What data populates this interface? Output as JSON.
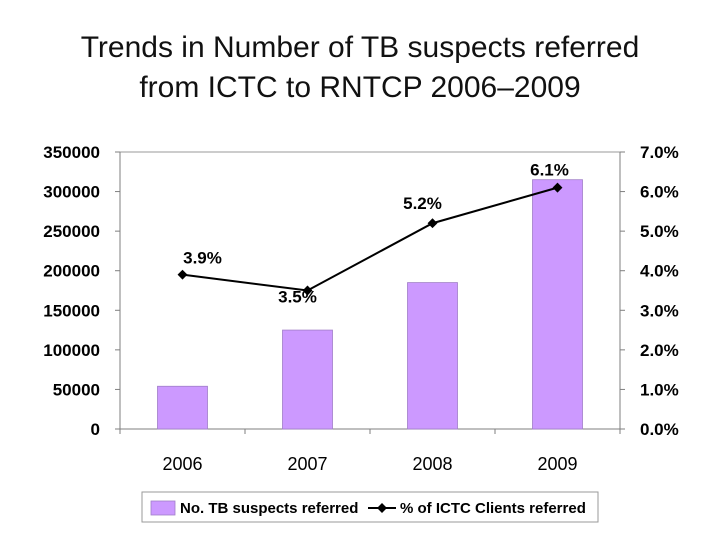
{
  "title_lines": [
    "Trends in Number of TB suspects referred",
    "from ICTC to RNTCP 2006–2009"
  ],
  "chart_data": {
    "type": "bar",
    "title": "Trends in Number of TB suspects referred from ICTC to RNTCP 2006–2009",
    "categories": [
      "2006",
      "2007",
      "2008",
      "2009"
    ],
    "series": [
      {
        "name": "No. TB suspects referred",
        "type": "bar",
        "axis": "left",
        "values": [
          54000,
          125000,
          185000,
          315000
        ],
        "color": "#cc99ff"
      },
      {
        "name": "% of ICTC Clients referred",
        "type": "line",
        "axis": "right",
        "values": [
          3.9,
          3.5,
          5.2,
          6.1
        ],
        "labels": [
          "3.9%",
          "3.5%",
          "5.2%",
          "6.1%"
        ],
        "color": "#000000"
      }
    ],
    "y_left": {
      "range": [
        0,
        350000
      ],
      "ticks": [
        0,
        50000,
        100000,
        150000,
        200000,
        250000,
        300000,
        350000
      ],
      "tick_labels": [
        "0",
        "50000",
        "100000",
        "150000",
        "200000",
        "250000",
        "300000",
        "350000"
      ]
    },
    "y_right": {
      "range": [
        0,
        7
      ],
      "ticks": [
        0,
        1,
        2,
        3,
        4,
        5,
        6,
        7
      ],
      "tick_labels": [
        "0.0%",
        "1.0%",
        "2.0%",
        "3.0%",
        "4.0%",
        "5.0%",
        "6.0%",
        "7.0%"
      ]
    },
    "grid": false,
    "legend": "bottom"
  }
}
